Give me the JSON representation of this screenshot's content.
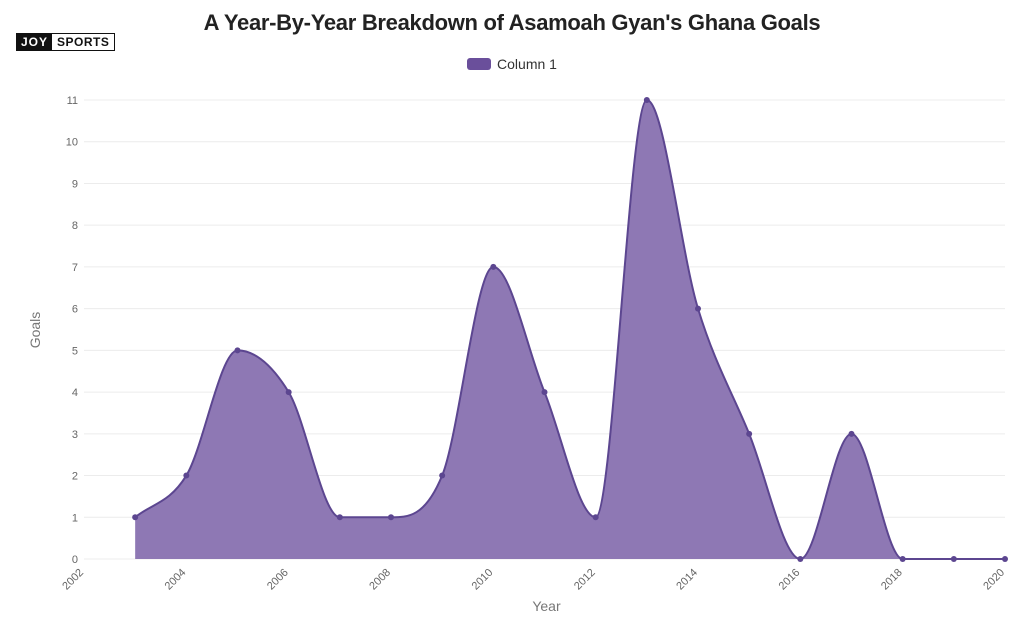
{
  "logo": {
    "left": "JOY",
    "right": "SPORTS"
  },
  "chart_data": {
    "type": "area",
    "title": "A Year-By-Year Breakdown of Asamoah Gyan's Ghana Goals",
    "xlabel": "Year",
    "ylabel": "Goals",
    "xlim": [
      2002,
      2020
    ],
    "ylim": [
      0,
      11
    ],
    "x_ticks": [
      "2002",
      "2004",
      "2006",
      "2008",
      "2010",
      "2012",
      "2014",
      "2016",
      "2018",
      "2020"
    ],
    "y_ticks": [
      "0",
      "1",
      "2",
      "3",
      "4",
      "5",
      "6",
      "7",
      "8",
      "9",
      "10",
      "11"
    ],
    "legend": "top",
    "grid": true,
    "colors": {
      "fill": "#8e78b4",
      "line": "#5c4690",
      "point": "#5c4690",
      "swatch": "#6a4f9b"
    },
    "series": [
      {
        "name": "Column 1",
        "x": [
          2003,
          2004,
          2005,
          2006,
          2007,
          2008,
          2009,
          2010,
          2011,
          2012,
          2013,
          2014,
          2015,
          2016,
          2017,
          2018,
          2019,
          2020
        ],
        "values": [
          1,
          2,
          5,
          4,
          1,
          1,
          2,
          7,
          4,
          1,
          11,
          6,
          3,
          0,
          3,
          0,
          0,
          0
        ]
      }
    ]
  }
}
